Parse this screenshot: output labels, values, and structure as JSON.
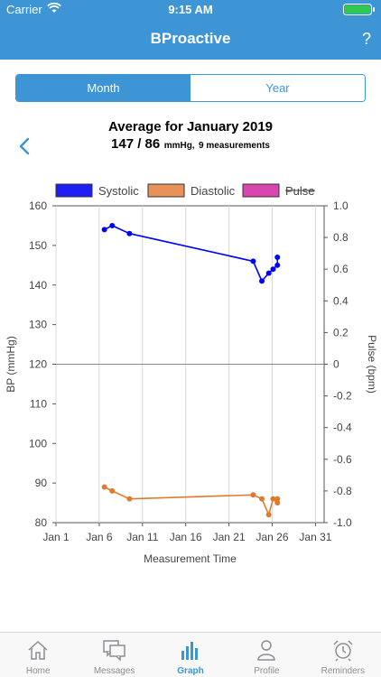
{
  "status_bar": {
    "carrier": "Carrier",
    "time": "9:15 AM"
  },
  "nav": {
    "title": "BProactive",
    "help_label": "?"
  },
  "segments": [
    {
      "label": "Month",
      "active": true
    },
    {
      "label": "Year",
      "active": false
    }
  ],
  "summary": {
    "title": "Average for January 2019",
    "value": "147 / 86",
    "unit": "mmHg,",
    "count": "9 measurements"
  },
  "colors": {
    "accent": "#3d95d6",
    "systolic": "#0000ff",
    "diastolic": "#e07b2e",
    "pulse": "#cc44aa"
  },
  "chart_data": {
    "type": "line",
    "xlabel": "Measurement Time",
    "ylabel_left": "BP (mmHg)",
    "ylabel_right": "Pulse (bpm)",
    "x_ticks": [
      "Jan 1",
      "Jan 6",
      "Jan 11",
      "Jan 16",
      "Jan 21",
      "Jan 26",
      "Jan 31"
    ],
    "x_range": [
      0,
      31
    ],
    "y_left_range": [
      80,
      160
    ],
    "y_left_ticks": [
      "80",
      "90",
      "100",
      "110",
      "120",
      "130",
      "140",
      "150",
      "160"
    ],
    "y_right_range": [
      -1.0,
      1.0
    ],
    "y_right_ticks": [
      "-1.0",
      "-0.8",
      "-0.6",
      "-0.4",
      "-0.2",
      "0",
      "0.2",
      "0.4",
      "0.6",
      "0.8",
      "1.0"
    ],
    "legend": [
      {
        "name": "Systolic",
        "color": "#1f1ff5",
        "hidden": false
      },
      {
        "name": "Diastolic",
        "color": "#e8925a",
        "hidden": false
      },
      {
        "name": "Pulse",
        "color": "#d946b0",
        "hidden": true
      }
    ],
    "series": [
      {
        "name": "Systolic",
        "color": "#0000ff",
        "points": [
          [
            5.6,
            154
          ],
          [
            6.5,
            155
          ],
          [
            8.5,
            153
          ],
          [
            22.8,
            146
          ],
          [
            23.8,
            141
          ],
          [
            24.6,
            143
          ],
          [
            25.1,
            144
          ],
          [
            25.6,
            145
          ],
          [
            25.6,
            147
          ]
        ]
      },
      {
        "name": "Diastolic",
        "color": "#e07b2e",
        "points": [
          [
            5.6,
            89
          ],
          [
            6.5,
            88
          ],
          [
            8.5,
            86
          ],
          [
            22.8,
            87
          ],
          [
            23.8,
            86
          ],
          [
            24.6,
            82
          ],
          [
            25.1,
            86
          ],
          [
            25.6,
            85
          ],
          [
            25.6,
            86
          ]
        ]
      }
    ]
  },
  "tabs": [
    {
      "label": "Home",
      "icon": "home-icon",
      "active": false
    },
    {
      "label": "Messages",
      "icon": "messages-icon",
      "active": false
    },
    {
      "label": "Graph",
      "icon": "graph-icon",
      "active": true
    },
    {
      "label": "Profile",
      "icon": "profile-icon",
      "active": false
    },
    {
      "label": "Reminders",
      "icon": "alarm-clock-icon",
      "active": false
    }
  ]
}
